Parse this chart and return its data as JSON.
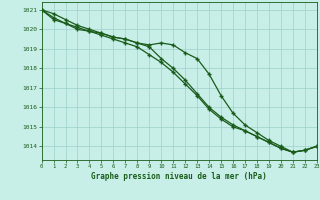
{
  "x": [
    0,
    1,
    2,
    3,
    4,
    5,
    6,
    7,
    8,
    9,
    10,
    11,
    12,
    13,
    14,
    15,
    16,
    17,
    18,
    19,
    20,
    21,
    22,
    23
  ],
  "series1": [
    1021.0,
    1020.8,
    1020.5,
    1020.2,
    1020.0,
    1019.8,
    1019.6,
    1019.5,
    1019.3,
    1019.1,
    1018.5,
    1018.0,
    1017.4,
    1016.7,
    1016.0,
    1015.5,
    1015.1,
    1014.8,
    1014.5,
    1014.2,
    1013.9,
    1013.7,
    1013.8,
    1014.0
  ],
  "series2": [
    1021.0,
    1020.6,
    1020.3,
    1020.1,
    1019.9,
    1019.8,
    1019.6,
    1019.5,
    1019.3,
    1019.2,
    1019.3,
    1019.2,
    1018.8,
    1018.5,
    1017.7,
    1016.6,
    1015.7,
    1015.1,
    1014.7,
    1014.3,
    1014.0,
    1013.7,
    1013.8,
    1014.0
  ],
  "series3": [
    1021.0,
    1020.5,
    1020.3,
    1020.0,
    1019.9,
    1019.7,
    1019.5,
    1019.3,
    1019.1,
    1018.7,
    1018.3,
    1017.8,
    1017.2,
    1016.6,
    1015.9,
    1015.4,
    1015.0,
    1014.8,
    1014.5,
    1014.2,
    1013.9,
    1013.7,
    1013.8,
    1014.0
  ],
  "line_color": "#1a5c1a",
  "bg_color": "#c8eee8",
  "grid_color": "#9ecfca",
  "title": "Graphe pression niveau de la mer (hPa)",
  "ylim_min": 1013.3,
  "ylim_max": 1021.4,
  "yticks": [
    1014,
    1015,
    1016,
    1017,
    1018,
    1019,
    1020,
    1021
  ],
  "marker": "+",
  "markersize": 3.5,
  "linewidth": 0.9
}
